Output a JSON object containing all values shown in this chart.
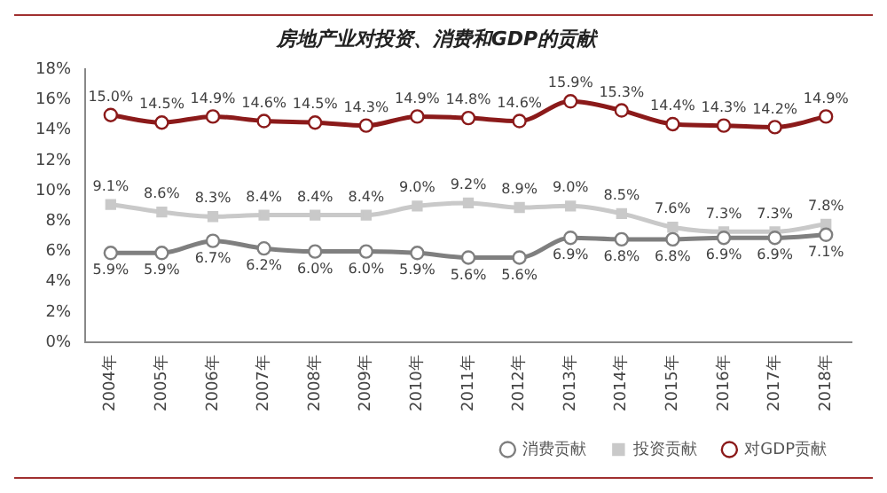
{
  "chart_data": {
    "type": "line",
    "title": "房地产业对投资、消费和GDP的贡献",
    "categories": [
      "2004年",
      "2005年",
      "2006年",
      "2007年",
      "2008年",
      "2009年",
      "2010年",
      "2011年",
      "2012年",
      "2013年",
      "2014年",
      "2015年",
      "2016年",
      "2017年",
      "2018年"
    ],
    "series": [
      {
        "name": "消费贡献",
        "color": "#7f7f7f",
        "marker": "circle",
        "values": [
          5.9,
          5.9,
          6.7,
          6.2,
          6.0,
          6.0,
          5.9,
          5.6,
          5.6,
          6.9,
          6.8,
          6.8,
          6.9,
          6.9,
          7.1
        ],
        "value_labels": [
          "5.9%",
          "5.9%",
          "6.7%",
          "6.2%",
          "6.0%",
          "6.0%",
          "5.9%",
          "5.6%",
          "5.6%",
          "6.9%",
          "6.8%",
          "6.8%",
          "6.9%",
          "6.9%",
          "7.1%"
        ]
      },
      {
        "name": "投资贡献",
        "color": "#c9c9c9",
        "marker": "square",
        "values": [
          9.1,
          8.6,
          8.3,
          8.4,
          8.4,
          8.4,
          9.0,
          9.2,
          8.9,
          9.0,
          8.5,
          7.6,
          7.3,
          7.3,
          7.8
        ],
        "value_labels": [
          "9.1%",
          "8.6%",
          "8.3%",
          "8.4%",
          "8.4%",
          "8.4%",
          "9.0%",
          "9.2%",
          "8.9%",
          "9.0%",
          "8.5%",
          "7.6%",
          "7.3%",
          "7.3%",
          "7.8%"
        ]
      },
      {
        "name": "对GDP贡献",
        "color": "#8b1a1a",
        "marker": "circle",
        "values": [
          15.0,
          14.5,
          14.9,
          14.6,
          14.5,
          14.3,
          14.9,
          14.8,
          14.6,
          15.9,
          15.3,
          14.4,
          14.3,
          14.2,
          14.9
        ],
        "value_labels": [
          "15.0%",
          "14.5%",
          "14.9%",
          "14.6%",
          "14.5%",
          "14.3%",
          "14.9%",
          "14.8%",
          "14.6%",
          "15.9%",
          "15.3%",
          "14.4%",
          "14.3%",
          "14.2%",
          "14.9%"
        ]
      }
    ],
    "ylim": [
      0,
      18
    ],
    "yticks": [
      {
        "value": 0,
        "label": "0%"
      },
      {
        "value": 2,
        "label": "2%"
      },
      {
        "value": 4,
        "label": "4%"
      },
      {
        "value": 6,
        "label": "6%"
      },
      {
        "value": 8,
        "label": "8%"
      },
      {
        "value": 10,
        "label": "10%"
      },
      {
        "value": 12,
        "label": "12%"
      },
      {
        "value": 14,
        "label": "14%"
      },
      {
        "value": 16,
        "label": "16%"
      },
      {
        "value": 18,
        "label": "18%"
      }
    ],
    "grid": false,
    "legend": "bottom"
  }
}
